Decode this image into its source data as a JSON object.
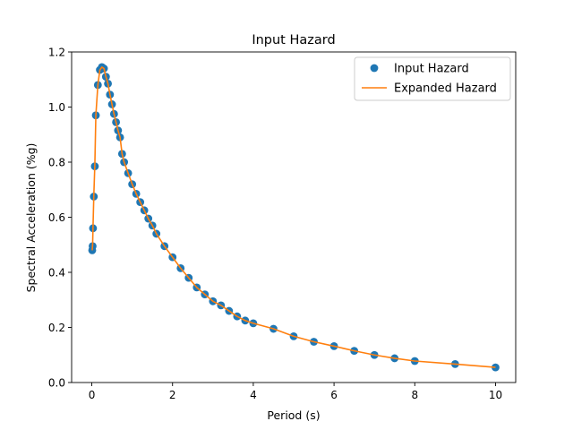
{
  "chart_data": {
    "type": "scatter",
    "title": "Input Hazard",
    "xlabel": "Period (s)",
    "ylabel": "Spectral Acceleration (%g)",
    "xlim": [
      -0.5,
      10.5
    ],
    "ylim": [
      0.0,
      1.2
    ],
    "xticks": [
      0,
      2,
      4,
      6,
      8,
      10
    ],
    "yticks": [
      0.0,
      0.2,
      0.4,
      0.6,
      0.8,
      1.0,
      1.2
    ],
    "grid": false,
    "legend_position": "top-right",
    "colors": {
      "input": "#1f77b4",
      "expanded": "#ff7f0e"
    },
    "series": [
      {
        "name": "Input Hazard",
        "kind": "markers",
        "x": [
          0.01,
          0.02,
          0.03,
          0.05,
          0.075,
          0.1,
          0.15,
          0.2,
          0.25,
          0.3,
          0.35,
          0.4,
          0.45,
          0.5,
          0.55,
          0.6,
          0.65,
          0.7,
          0.75,
          0.8,
          0.9,
          1.0,
          1.1,
          1.2,
          1.3,
          1.4,
          1.5,
          1.6,
          1.8,
          2.0,
          2.2,
          2.4,
          2.6,
          2.8,
          3.0,
          3.2,
          3.4,
          3.6,
          3.8,
          4.0,
          4.5,
          5.0,
          5.5,
          6.0,
          6.5,
          7.0,
          7.5,
          8.0,
          9.0,
          10.0
        ],
        "y": [
          0.48,
          0.495,
          0.56,
          0.675,
          0.785,
          0.97,
          1.08,
          1.135,
          1.145,
          1.14,
          1.11,
          1.085,
          1.045,
          1.01,
          0.975,
          0.945,
          0.915,
          0.89,
          0.83,
          0.8,
          0.76,
          0.72,
          0.685,
          0.655,
          0.625,
          0.595,
          0.57,
          0.54,
          0.495,
          0.455,
          0.415,
          0.38,
          0.345,
          0.32,
          0.295,
          0.28,
          0.26,
          0.24,
          0.225,
          0.215,
          0.195,
          0.168,
          0.148,
          0.132,
          0.115,
          0.1,
          0.088,
          0.078,
          0.067,
          0.055
        ]
      },
      {
        "name": "Expanded Hazard",
        "kind": "line",
        "x": [
          0.01,
          0.02,
          0.03,
          0.05,
          0.075,
          0.1,
          0.15,
          0.2,
          0.25,
          0.3,
          0.35,
          0.4,
          0.45,
          0.5,
          0.55,
          0.6,
          0.65,
          0.7,
          0.75,
          0.8,
          0.9,
          1.0,
          1.1,
          1.2,
          1.3,
          1.4,
          1.5,
          1.6,
          1.8,
          2.0,
          2.2,
          2.4,
          2.6,
          2.8,
          3.0,
          3.2,
          3.4,
          3.6,
          3.8,
          4.0,
          4.5,
          5.0,
          5.5,
          6.0,
          6.5,
          7.0,
          7.5,
          8.0,
          9.0,
          10.0
        ],
        "y": [
          0.48,
          0.5,
          0.565,
          0.68,
          0.79,
          0.97,
          1.08,
          1.135,
          1.145,
          1.14,
          1.11,
          1.085,
          1.045,
          1.01,
          0.975,
          0.945,
          0.915,
          0.89,
          0.83,
          0.8,
          0.76,
          0.72,
          0.685,
          0.655,
          0.625,
          0.595,
          0.57,
          0.54,
          0.495,
          0.455,
          0.415,
          0.38,
          0.345,
          0.32,
          0.295,
          0.28,
          0.26,
          0.24,
          0.225,
          0.215,
          0.195,
          0.168,
          0.148,
          0.132,
          0.115,
          0.1,
          0.088,
          0.078,
          0.067,
          0.055
        ]
      }
    ]
  }
}
